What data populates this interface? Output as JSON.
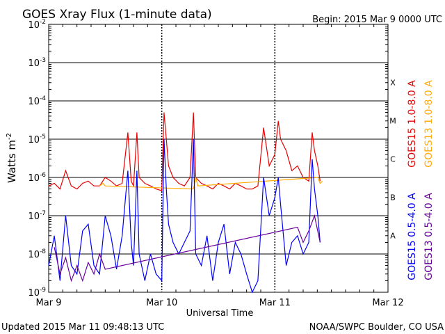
{
  "chart_data": {
    "type": "line",
    "title": "GOES Xray Flux (1-minute data)",
    "begin_label": "Begin:  2015 Mar 9 0000 UTC",
    "xlabel": "Universal Time",
    "ylabel_main": "Watts m",
    "ylabel_exp": "-2",
    "x_ticks": [
      "Mar 9",
      "Mar 10",
      "Mar 11",
      "Mar 12"
    ],
    "xlim_days": [
      0,
      3
    ],
    "y_scale": "log",
    "ylim": [
      1e-09,
      0.01
    ],
    "y_tick_exponents": [
      "-2",
      "-3",
      "-4",
      "-5",
      "-6",
      "-7",
      "-8",
      "-9"
    ],
    "y_tick_base": "10",
    "flare_classes": [
      {
        "label": "X",
        "flux": 0.0001
      },
      {
        "label": "M",
        "flux": 1e-05
      },
      {
        "label": "C",
        "flux": 1e-06
      },
      {
        "label": "B",
        "flux": 1e-07
      },
      {
        "label": "A",
        "flux": 1e-08
      }
    ],
    "grid": "horizontal at each decade; dotted vertical at each day",
    "series": [
      {
        "name": "GOES15 1.0-8.0 A",
        "color": "#e60000",
        "x_days": [
          0.0,
          0.05,
          0.1,
          0.15,
          0.2,
          0.25,
          0.3,
          0.35,
          0.4,
          0.45,
          0.5,
          0.55,
          0.6,
          0.65,
          0.7,
          0.73,
          0.75,
          0.78,
          0.8,
          0.85,
          0.9,
          0.95,
          1.0,
          1.02,
          1.04,
          1.06,
          1.1,
          1.15,
          1.2,
          1.25,
          1.28,
          1.3,
          1.35,
          1.4,
          1.45,
          1.5,
          1.55,
          1.6,
          1.65,
          1.7,
          1.75,
          1.8,
          1.85,
          1.9,
          1.95,
          2.0,
          2.03,
          2.05,
          2.1,
          2.15,
          2.2,
          2.25,
          2.3,
          2.33,
          2.35,
          2.38,
          2.4
        ],
        "y_flux": [
          6e-07,
          7e-07,
          5e-07,
          1.5e-06,
          6e-07,
          5e-07,
          7e-07,
          8e-07,
          6e-07,
          6e-07,
          1e-06,
          8e-07,
          6e-07,
          7e-07,
          1.5e-05,
          8e-07,
          6e-07,
          1.5e-05,
          1e-06,
          7e-07,
          6e-07,
          5e-07,
          4.5e-07,
          5e-05,
          1e-05,
          2e-06,
          1e-06,
          7e-07,
          6e-07,
          1e-06,
          5e-05,
          1e-06,
          7e-07,
          6e-07,
          5e-07,
          7e-07,
          6e-07,
          5e-07,
          7e-07,
          6e-07,
          5e-07,
          5e-07,
          6e-07,
          2e-05,
          2e-06,
          4e-06,
          3e-05,
          1e-05,
          5e-06,
          1.5e-06,
          2e-06,
          1e-06,
          8e-07,
          1.5e-05,
          5e-06,
          2e-06,
          8e-07
        ]
      },
      {
        "name": "GOES13 1.0-8.0 A",
        "color": "#ffaa00",
        "x_days": [
          0.45,
          0.48,
          0.5,
          1.28,
          1.3,
          1.32,
          2.38,
          2.4,
          2.42
        ],
        "y_flux": [
          6e-07,
          7e-07,
          6e-07,
          5e-07,
          1e-06,
          6e-07,
          1e-06,
          7e-07,
          8e-07
        ]
      },
      {
        "name": "GOES15 0.5-4.0 A",
        "color": "#0000ff",
        "x_days": [
          0.0,
          0.05,
          0.1,
          0.15,
          0.2,
          0.25,
          0.3,
          0.35,
          0.4,
          0.45,
          0.5,
          0.55,
          0.6,
          0.65,
          0.7,
          0.73,
          0.75,
          0.78,
          0.8,
          0.85,
          0.9,
          0.95,
          1.0,
          1.02,
          1.04,
          1.06,
          1.1,
          1.15,
          1.2,
          1.25,
          1.28,
          1.3,
          1.35,
          1.4,
          1.45,
          1.5,
          1.55,
          1.6,
          1.65,
          1.7,
          1.75,
          1.8,
          1.85,
          1.9,
          1.95,
          2.0,
          2.03,
          2.05,
          2.1,
          2.15,
          2.2,
          2.25,
          2.3,
          2.33,
          2.35,
          2.38,
          2.4
        ],
        "y_flux": [
          5e-09,
          3e-08,
          2e-09,
          1e-07,
          5e-09,
          3e-09,
          4e-08,
          6e-08,
          5e-09,
          3e-09,
          1e-07,
          3e-08,
          4e-09,
          3e-08,
          1.5e-06,
          2e-08,
          5e-09,
          1.5e-06,
          1e-08,
          2e-09,
          1e-08,
          3e-09,
          2e-09,
          1e-05,
          5e-07,
          6e-08,
          2e-08,
          1e-08,
          2e-08,
          4e-08,
          1e-05,
          1e-08,
          5e-09,
          3e-08,
          2e-09,
          2e-08,
          6e-08,
          3e-09,
          2e-08,
          1e-08,
          3e-09,
          1e-09,
          2e-09,
          1e-06,
          1e-07,
          3e-07,
          1e-06,
          2e-07,
          5e-09,
          2e-08,
          3e-08,
          1e-08,
          2e-08,
          3e-06,
          5e-07,
          1e-07,
          2e-08
        ]
      },
      {
        "name": "GOES13 0.5-4.0 A",
        "color": "#660099",
        "x_days": [
          0.05,
          0.1,
          0.15,
          0.2,
          0.25,
          0.3,
          0.35,
          0.4,
          0.45,
          0.5,
          2.2,
          2.25,
          2.3,
          2.35,
          2.4
        ],
        "y_flux": [
          1.5e-08,
          3e-09,
          8e-09,
          2e-09,
          5e-09,
          2e-09,
          6e-09,
          3e-09,
          1e-08,
          4e-09,
          5e-08,
          2e-08,
          4e-08,
          1e-07,
          2e-08
        ]
      }
    ]
  },
  "footer": {
    "updated": "Updated 2015 Mar 11 09:48:13 UTC",
    "source": "NOAA/SWPC Boulder, CO USA"
  }
}
